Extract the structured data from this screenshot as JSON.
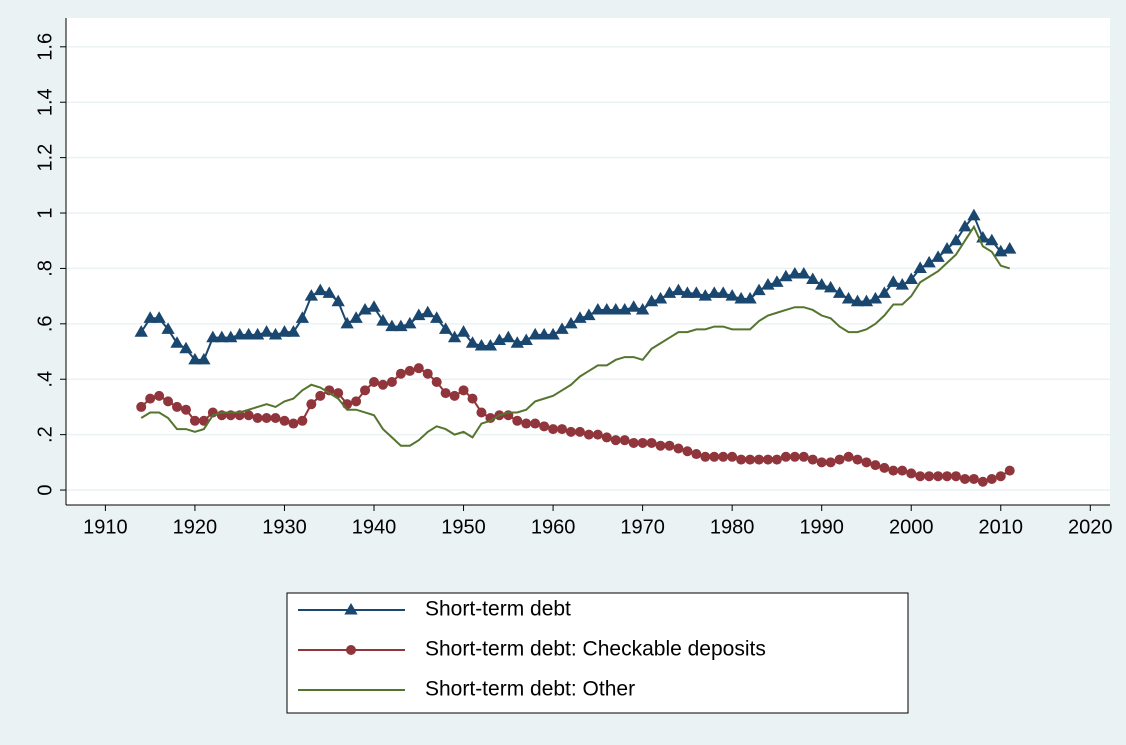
{
  "chart_data": {
    "type": "line",
    "x": [
      1914,
      1915,
      1916,
      1917,
      1918,
      1919,
      1920,
      1921,
      1922,
      1923,
      1924,
      1925,
      1926,
      1927,
      1928,
      1929,
      1930,
      1931,
      1932,
      1933,
      1934,
      1935,
      1936,
      1937,
      1938,
      1939,
      1940,
      1941,
      1942,
      1943,
      1944,
      1945,
      1946,
      1947,
      1948,
      1949,
      1950,
      1951,
      1952,
      1953,
      1954,
      1955,
      1956,
      1957,
      1958,
      1959,
      1960,
      1961,
      1962,
      1963,
      1964,
      1965,
      1966,
      1967,
      1968,
      1969,
      1970,
      1971,
      1972,
      1973,
      1974,
      1975,
      1976,
      1977,
      1978,
      1979,
      1980,
      1981,
      1982,
      1983,
      1984,
      1985,
      1986,
      1987,
      1988,
      1989,
      1990,
      1991,
      1992,
      1993,
      1994,
      1995,
      1996,
      1997,
      1998,
      1999,
      2000,
      2001,
      2002,
      2003,
      2004,
      2005,
      2006,
      2007,
      2008,
      2009,
      2010,
      2011
    ],
    "series": [
      {
        "name": "Short-term debt",
        "color": "#1a476f",
        "marker": "triangle",
        "values": [
          0.57,
          0.62,
          0.62,
          0.58,
          0.53,
          0.51,
          0.47,
          0.47,
          0.55,
          0.55,
          0.55,
          0.56,
          0.56,
          0.56,
          0.57,
          0.56,
          0.57,
          0.57,
          0.62,
          0.7,
          0.72,
          0.71,
          0.68,
          0.6,
          0.62,
          0.65,
          0.66,
          0.61,
          0.59,
          0.59,
          0.6,
          0.63,
          0.64,
          0.62,
          0.58,
          0.55,
          0.57,
          0.53,
          0.52,
          0.52,
          0.54,
          0.55,
          0.53,
          0.54,
          0.56,
          0.56,
          0.56,
          0.58,
          0.6,
          0.62,
          0.63,
          0.65,
          0.65,
          0.65,
          0.65,
          0.66,
          0.65,
          0.68,
          0.69,
          0.71,
          0.72,
          0.71,
          0.71,
          0.7,
          0.71,
          0.71,
          0.7,
          0.69,
          0.69,
          0.72,
          0.74,
          0.75,
          0.77,
          0.78,
          0.78,
          0.76,
          0.74,
          0.73,
          0.71,
          0.69,
          0.68,
          0.68,
          0.69,
          0.71,
          0.75,
          0.74,
          0.76,
          0.8,
          0.82,
          0.84,
          0.87,
          0.9,
          0.95,
          0.99,
          0.91,
          0.9,
          0.86,
          0.87
        ]
      },
      {
        "name": "Short-term debt: Checkable deposits",
        "color": "#90353b",
        "marker": "circle",
        "values": [
          0.3,
          0.33,
          0.34,
          0.32,
          0.3,
          0.29,
          0.25,
          0.25,
          0.28,
          0.27,
          0.27,
          0.27,
          0.27,
          0.26,
          0.26,
          0.26,
          0.25,
          0.24,
          0.25,
          0.31,
          0.34,
          0.36,
          0.35,
          0.31,
          0.32,
          0.36,
          0.39,
          0.38,
          0.39,
          0.42,
          0.43,
          0.44,
          0.42,
          0.39,
          0.35,
          0.34,
          0.36,
          0.33,
          0.28,
          0.26,
          0.27,
          0.27,
          0.25,
          0.24,
          0.24,
          0.23,
          0.22,
          0.22,
          0.21,
          0.21,
          0.2,
          0.2,
          0.19,
          0.18,
          0.18,
          0.17,
          0.17,
          0.17,
          0.16,
          0.16,
          0.15,
          0.14,
          0.13,
          0.12,
          0.12,
          0.12,
          0.12,
          0.11,
          0.11,
          0.11,
          0.11,
          0.11,
          0.12,
          0.12,
          0.12,
          0.11,
          0.1,
          0.1,
          0.11,
          0.12,
          0.11,
          0.1,
          0.09,
          0.08,
          0.07,
          0.07,
          0.06,
          0.05,
          0.05,
          0.05,
          0.05,
          0.05,
          0.04,
          0.04,
          0.03,
          0.04,
          0.05,
          0.07
        ]
      },
      {
        "name": "Short-term debt: Other",
        "color": "#55752f",
        "values": [
          0.26,
          0.28,
          0.28,
          0.26,
          0.22,
          0.22,
          0.21,
          0.22,
          0.27,
          0.28,
          0.28,
          0.28,
          0.29,
          0.3,
          0.31,
          0.3,
          0.32,
          0.33,
          0.36,
          0.38,
          0.37,
          0.35,
          0.33,
          0.29,
          0.29,
          0.28,
          0.27,
          0.22,
          0.19,
          0.16,
          0.16,
          0.18,
          0.21,
          0.23,
          0.22,
          0.2,
          0.21,
          0.19,
          0.24,
          0.25,
          0.27,
          0.28,
          0.28,
          0.29,
          0.32,
          0.33,
          0.34,
          0.36,
          0.38,
          0.41,
          0.43,
          0.45,
          0.45,
          0.47,
          0.48,
          0.48,
          0.47,
          0.51,
          0.53,
          0.55,
          0.57,
          0.57,
          0.58,
          0.58,
          0.59,
          0.59,
          0.58,
          0.58,
          0.58,
          0.61,
          0.63,
          0.64,
          0.65,
          0.66,
          0.66,
          0.65,
          0.63,
          0.62,
          0.59,
          0.57,
          0.57,
          0.58,
          0.6,
          0.63,
          0.67,
          0.67,
          0.7,
          0.75,
          0.77,
          0.79,
          0.82,
          0.85,
          0.9,
          0.95,
          0.88,
          0.86,
          0.81,
          0.8
        ]
      }
    ],
    "xlim": [
      1905.6,
      2022.2
    ],
    "xticks": [
      1910,
      1920,
      1930,
      1940,
      1950,
      1960,
      1970,
      1980,
      1990,
      2000,
      2010,
      2020
    ],
    "ylim": [
      -0.054,
      1.704
    ],
    "yticks": [
      0,
      {
        "value": 0.2,
        "label": ".2"
      },
      {
        "value": 0.4,
        "label": ".4"
      },
      {
        "value": 0.6,
        "label": ".6"
      },
      {
        "value": 0.8,
        "label": ".8"
      },
      1,
      {
        "value": 1.2,
        "label": "1.2"
      },
      {
        "value": 1.4,
        "label": "1.4"
      },
      {
        "value": 1.6,
        "label": "1.6"
      }
    ],
    "grid": true
  }
}
